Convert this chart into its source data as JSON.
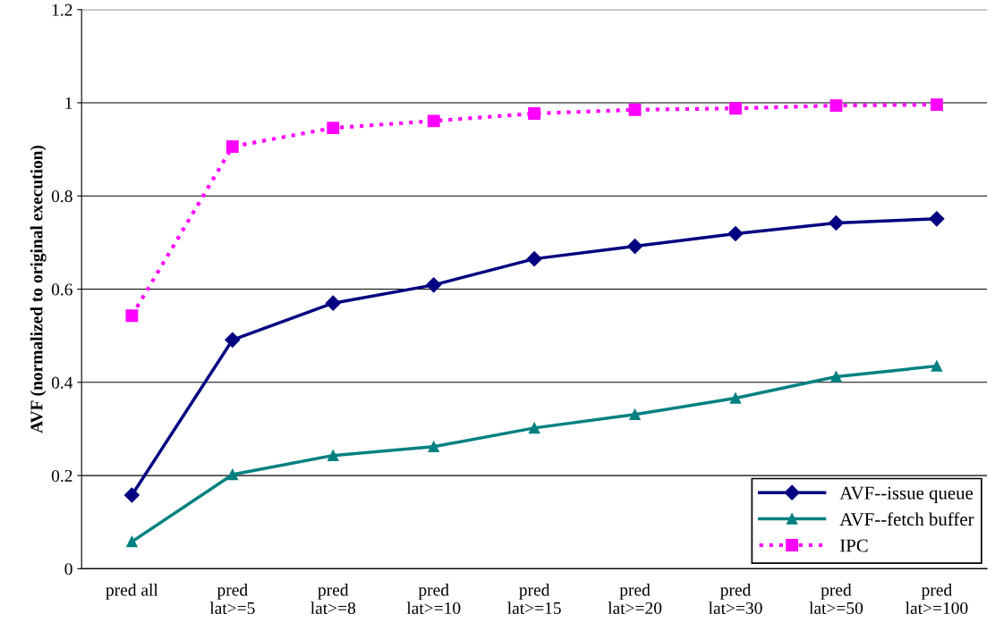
{
  "chart_data": {
    "type": "line",
    "ylabel": "AVF (normalized to original execution)",
    "categories": [
      "pred all",
      "pred\nlat>=5",
      "pred\nlat>=8",
      "pred\nlat>=10",
      "pred\nlat>=15",
      "pred\nlat>=20",
      "pred\nlat>=30",
      "pred\nlat>=50",
      "pred\nlat>=100"
    ],
    "series": [
      {
        "name": "AVF--issue queue",
        "color": "#000080",
        "marker": "diamond",
        "values": [
          0.158,
          0.491,
          0.57,
          0.609,
          0.665,
          0.692,
          0.719,
          0.742,
          0.751
        ]
      },
      {
        "name": "AVF--fetch buffer",
        "color": "#008080",
        "marker": "triangle",
        "values": [
          0.058,
          0.202,
          0.243,
          0.262,
          0.302,
          0.331,
          0.366,
          0.412,
          0.435
        ]
      },
      {
        "name": "IPC",
        "color": "#ff00ff",
        "line_style": "dotted",
        "marker": "square",
        "values": [
          0.543,
          0.906,
          0.946,
          0.961,
          0.977,
          0.985,
          0.988,
          0.994,
          0.996
        ]
      }
    ],
    "ylim": [
      0,
      1.2
    ],
    "yticks": [
      0,
      0.2,
      0.4,
      0.6,
      0.8,
      1,
      1.2
    ],
    "grid": "y",
    "legend": "bottom right"
  }
}
